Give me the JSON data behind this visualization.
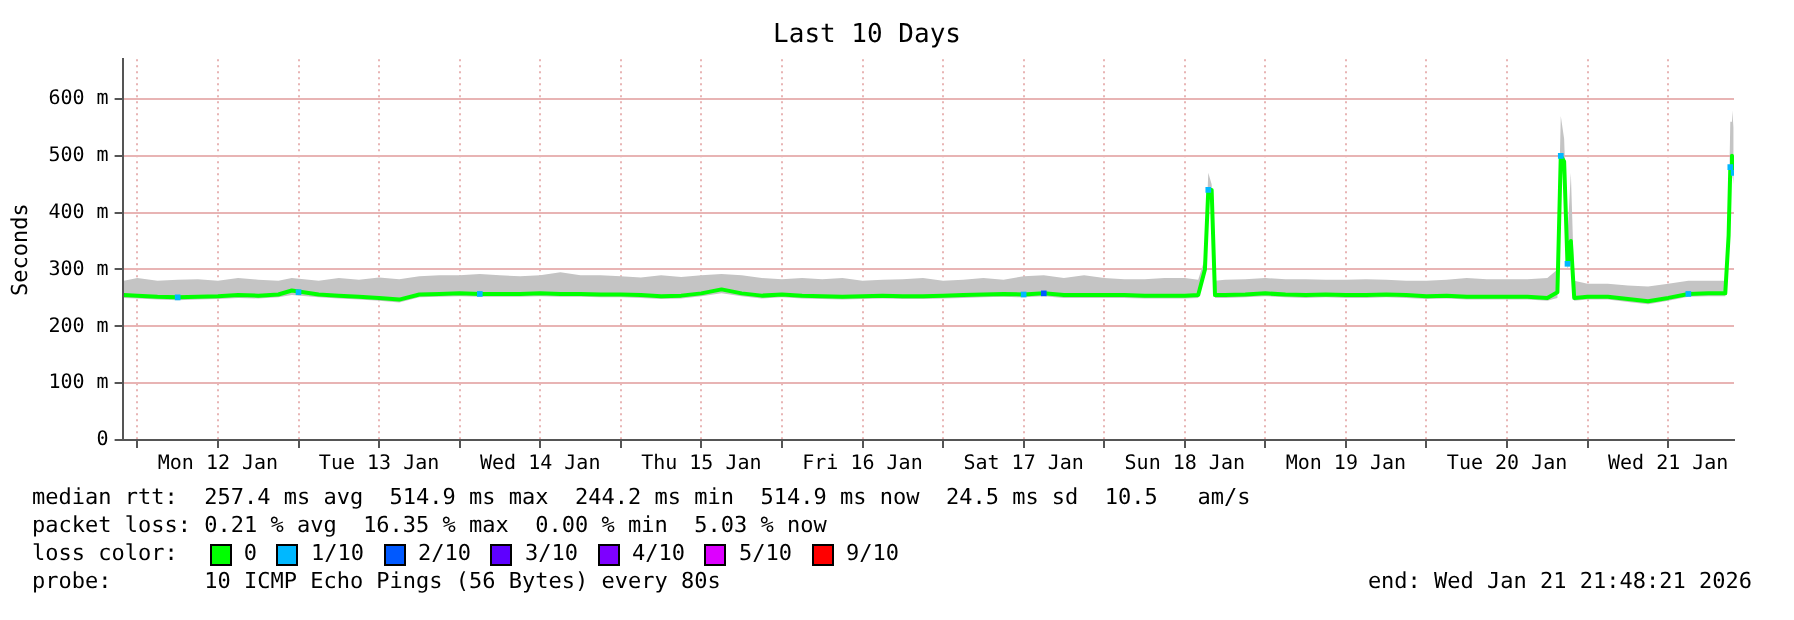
{
  "chart_data": {
    "type": "line",
    "title": "Last 10 Days",
    "ylabel": "Seconds",
    "legend_title": "loss color:",
    "legend": "bottom",
    "grid": true,
    "xlim": [
      "2026-01-11T21:48",
      "2026-01-21T21:48"
    ],
    "xticks": [
      {
        "value": "2026-01-12T00:00",
        "label": null
      },
      {
        "value": "2026-01-12T12:00",
        "label": "Mon 12 Jan"
      },
      {
        "value": "2026-01-13T00:00",
        "label": null
      },
      {
        "value": "2026-01-13T12:00",
        "label": "Tue 13 Jan"
      },
      {
        "value": "2026-01-14T00:00",
        "label": null
      },
      {
        "value": "2026-01-14T12:00",
        "label": "Wed 14 Jan"
      },
      {
        "value": "2026-01-15T00:00",
        "label": null
      },
      {
        "value": "2026-01-15T12:00",
        "label": "Thu 15 Jan"
      },
      {
        "value": "2026-01-16T00:00",
        "label": null
      },
      {
        "value": "2026-01-16T12:00",
        "label": "Fri 16 Jan"
      },
      {
        "value": "2026-01-17T00:00",
        "label": null
      },
      {
        "value": "2026-01-17T12:00",
        "label": "Sat 17 Jan"
      },
      {
        "value": "2026-01-18T00:00",
        "label": null
      },
      {
        "value": "2026-01-18T12:00",
        "label": "Sun 18 Jan"
      },
      {
        "value": "2026-01-19T00:00",
        "label": null
      },
      {
        "value": "2026-01-19T12:00",
        "label": "Mon 19 Jan"
      },
      {
        "value": "2026-01-20T00:00",
        "label": null
      },
      {
        "value": "2026-01-20T12:00",
        "label": "Tue 20 Jan"
      },
      {
        "value": "2026-01-21T00:00",
        "label": null
      },
      {
        "value": "2026-01-21T12:00",
        "label": "Wed 21 Jan"
      }
    ],
    "ylim": [
      0,
      670
    ],
    "yticks": [
      0,
      {
        "value": 100,
        "label": "100 m"
      },
      {
        "value": 200,
        "label": "200 m"
      },
      {
        "value": 300,
        "label": "300 m"
      },
      {
        "value": 400,
        "label": "400 m"
      },
      {
        "value": 500,
        "label": "500 m"
      },
      {
        "value": 600,
        "label": "600 m"
      }
    ],
    "series": [
      {
        "name": "0",
        "color": "#00ff00",
        "line_style": "solid",
        "x": [
          "2026-01-11T22:00",
          "2026-01-12T00:00",
          "2026-01-12T03:00",
          "2026-01-12T06:00",
          "2026-01-12T09:00",
          "2026-01-12T12:00",
          "2026-01-12T15:00",
          "2026-01-12T18:00",
          "2026-01-12T21:00",
          "2026-01-12T23:00",
          "2026-01-13T03:00",
          "2026-01-13T06:00",
          "2026-01-13T09:00",
          "2026-01-13T12:00",
          "2026-01-13T15:00",
          "2026-01-13T18:00",
          "2026-01-13T21:00",
          "2026-01-14T00:00",
          "2026-01-14T03:00",
          "2026-01-14T06:00",
          "2026-01-14T09:00",
          "2026-01-14T12:00",
          "2026-01-14T15:00",
          "2026-01-14T18:00",
          "2026-01-14T21:00",
          "2026-01-15T00:00",
          "2026-01-15T03:00",
          "2026-01-15T06:00",
          "2026-01-15T09:00",
          "2026-01-15T12:00",
          "2026-01-15T15:00",
          "2026-01-15T18:00",
          "2026-01-15T21:00",
          "2026-01-16T00:00",
          "2026-01-16T03:00",
          "2026-01-16T06:00",
          "2026-01-16T09:00",
          "2026-01-16T12:00",
          "2026-01-16T15:00",
          "2026-01-16T18:00",
          "2026-01-16T21:00",
          "2026-01-17T00:00",
          "2026-01-17T03:00",
          "2026-01-17T06:00",
          "2026-01-17T09:00",
          "2026-01-17T12:00",
          "2026-01-17T15:00",
          "2026-01-17T18:00",
          "2026-01-17T21:00",
          "2026-01-18T00:00",
          "2026-01-18T03:00",
          "2026-01-18T06:00",
          "2026-01-18T09:00",
          "2026-01-18T12:00",
          "2026-01-18T14:00",
          "2026-01-18T15:00",
          "2026-01-18T15:30",
          "2026-01-18T16:00",
          "2026-01-18T16:30",
          "2026-01-18T18:00",
          "2026-01-18T21:00",
          "2026-01-19T00:00",
          "2026-01-19T03:00",
          "2026-01-19T06:00",
          "2026-01-19T09:00",
          "2026-01-19T12:00",
          "2026-01-19T15:00",
          "2026-01-19T18:00",
          "2026-01-19T21:00",
          "2026-01-20T00:00",
          "2026-01-20T03:00",
          "2026-01-20T06:00",
          "2026-01-20T09:00",
          "2026-01-20T12:00",
          "2026-01-20T15:00",
          "2026-01-20T18:00",
          "2026-01-20T19:30",
          "2026-01-20T20:00",
          "2026-01-20T20:30",
          "2026-01-20T21:00",
          "2026-01-20T21:30",
          "2026-01-20T22:00",
          "2026-01-21T00:00",
          "2026-01-21T03:00",
          "2026-01-21T06:00",
          "2026-01-21T09:00",
          "2026-01-21T12:00",
          "2026-01-21T15:00",
          "2026-01-21T18:00",
          "2026-01-21T20:30",
          "2026-01-21T21:00",
          "2026-01-21T21:15",
          "2026-01-21T21:30",
          "2026-01-21T21:45"
        ],
        "values": [
          255,
          254,
          252,
          251,
          252,
          253,
          255,
          254,
          256,
          263,
          256,
          254,
          252,
          250,
          247,
          256,
          257,
          258,
          257,
          257,
          257,
          258,
          257,
          257,
          256,
          256,
          255,
          253,
          254,
          258,
          265,
          258,
          254,
          256,
          254,
          253,
          252,
          253,
          254,
          253,
          253,
          254,
          255,
          256,
          257,
          256,
          258,
          255,
          255,
          255,
          255,
          254,
          254,
          254,
          255,
          300,
          440,
          440,
          255,
          255,
          256,
          258,
          256,
          255,
          256,
          255,
          255,
          256,
          255,
          253,
          254,
          252,
          252,
          252,
          252,
          250,
          260,
          500,
          490,
          310,
          350,
          250,
          252,
          252,
          248,
          244,
          250,
          257,
          258,
          258,
          360,
          480,
          500,
          470
        ],
        "lower": [
          250,
          249,
          247,
          246,
          247,
          248,
          250,
          249,
          251,
          255,
          251,
          249,
          247,
          245,
          242,
          251,
          252,
          253,
          252,
          252,
          252,
          253,
          252,
          252,
          251,
          251,
          250,
          248,
          249,
          253,
          258,
          253,
          249,
          251,
          249,
          248,
          247,
          248,
          249,
          248,
          248,
          249,
          250,
          251,
          252,
          251,
          253,
          250,
          250,
          250,
          250,
          249,
          249,
          249,
          250,
          290,
          420,
          430,
          250,
          250,
          251,
          253,
          251,
          250,
          251,
          250,
          250,
          251,
          250,
          248,
          249,
          247,
          247,
          247,
          247,
          245,
          250,
          480,
          460,
          300,
          320,
          245,
          247,
          247,
          243,
          239,
          245,
          252,
          253,
          253,
          350,
          450,
          470,
          450
        ],
        "upper": [
          280,
          285,
          280,
          282,
          283,
          280,
          285,
          282,
          280,
          285,
          280,
          285,
          282,
          286,
          283,
          288,
          290,
          290,
          292,
          290,
          288,
          290,
          295,
          290,
          290,
          288,
          286,
          290,
          287,
          290,
          292,
          290,
          285,
          283,
          285,
          283,
          285,
          280,
          282,
          283,
          285,
          280,
          282,
          285,
          282,
          288,
          290,
          285,
          290,
          285,
          283,
          283,
          285,
          285,
          282,
          320,
          470,
          450,
          280,
          282,
          283,
          285,
          283,
          283,
          282,
          282,
          283,
          282,
          280,
          280,
          282,
          285,
          283,
          283,
          283,
          285,
          300,
          570,
          530,
          360,
          470,
          280,
          275,
          275,
          272,
          270,
          275,
          280,
          280,
          280,
          400,
          560,
          580,
          550
        ]
      },
      {
        "name": "1/10",
        "type": "scatter",
        "marker": "square",
        "color": "#00b8ff",
        "x": [
          "2026-01-12T06:00",
          "2026-01-13T00:00",
          "2026-01-14T03:00",
          "2026-01-17T12:00",
          "2026-01-18T15:30",
          "2026-01-20T20:00",
          "2026-01-20T21:00",
          "2026-01-21T15:00",
          "2026-01-21T21:15",
          "2026-01-21T21:45"
        ],
        "values": [
          251,
          260,
          257,
          256,
          440,
          500,
          310,
          257,
          480,
          470
        ]
      },
      {
        "name": "2/10",
        "type": "scatter",
        "marker": "square",
        "color": "#0059ff",
        "x": [
          "2026-01-17T15:00"
        ],
        "values": [
          258
        ]
      },
      {
        "name": "3/10",
        "type": "scatter",
        "marker": "square",
        "color": "#5e00ff"
      },
      {
        "name": "4/10",
        "type": "scatter",
        "marker": "square",
        "color": "#7e00ff"
      },
      {
        "name": "5/10",
        "type": "scatter",
        "marker": "square",
        "color": "#dd00ff"
      },
      {
        "name": "9/10",
        "type": "scatter",
        "marker": "square",
        "color": "#ff0000"
      }
    ],
    "annotations": [
      "median rtt:  257.4 ms avg  514.9 ms max  244.2 ms min  514.9 ms now  24.5 ms sd  10.5   am/s",
      "packet loss: 0.21 % avg  16.35 % max  0.00 % min  5.03 % now",
      "probe:       10 ICMP Echo Pings (56 Bytes) every 80s",
      "end: Wed Jan 21 21:48:21 2026"
    ]
  }
}
